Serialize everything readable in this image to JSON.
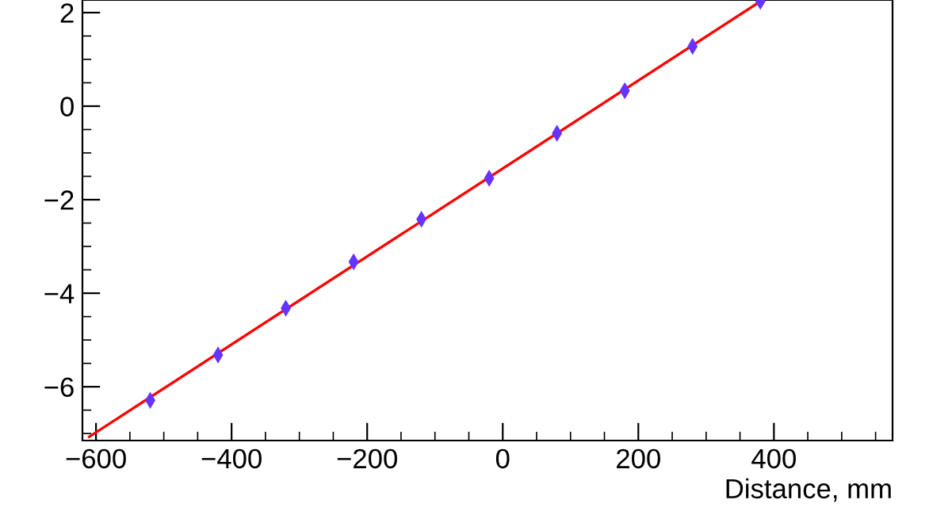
{
  "chart_data": {
    "type": "scatter",
    "xlabel": "Distance, mm",
    "series": [
      {
        "color": "#6633ff",
        "x": [
          -520,
          -420,
          -320,
          -220,
          -120,
          -20,
          80,
          180,
          280,
          380
        ],
        "values": [
          -6.29,
          -5.32,
          -4.32,
          -3.33,
          -2.42,
          -1.54,
          -0.58,
          0.33,
          1.28,
          2.24
        ],
        "errors": [
          0.12,
          0.12,
          0.12,
          0.12,
          0.12,
          0.12,
          0.12,
          0.12,
          0.12,
          null
        ]
      },
      {
        "type": "line",
        "marker": "none",
        "color": "#ff0000",
        "x": [
          -610,
          380
        ],
        "values": [
          -7.07,
          2.24
        ]
      }
    ],
    "xlim": [
      -620,
      575
    ],
    "ylim": [
      -7.15,
      2.27
    ],
    "xticks": [
      -600,
      -400,
      -200,
      0,
      200,
      400
    ],
    "yticks": [
      -6,
      -4,
      -2,
      0,
      2
    ],
    "marker": "diamond",
    "grid": false,
    "legend": false
  }
}
